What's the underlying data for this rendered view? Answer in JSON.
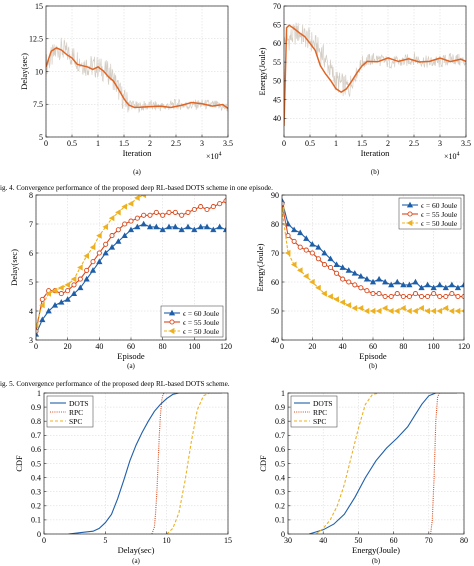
{
  "captions": {
    "fig4": "ig. 4.   Convergence performance of the proposed deep RL-based DOTS scheme in one episode.",
    "fig5": "ig. 5.   Convergence performance of the proposed deep RL-based DOTS scheme."
  },
  "chart_data": [
    {
      "type": "line",
      "panel": "(a)",
      "xlabel": "Iteration",
      "ylabel": "Delay(sec)",
      "x_multiplier": "×10^4",
      "xlim": [
        0,
        3.5
      ],
      "ylim": [
        5,
        15
      ],
      "xticks": [
        0,
        0.5,
        1,
        1.5,
        2,
        2.5,
        3,
        3.5
      ],
      "xtick_labels": [
        "0",
        "0.5",
        "1",
        "1.5",
        "2",
        "2.5",
        "3",
        "3.5"
      ],
      "yticks": [
        5,
        7.5,
        10,
        12.5,
        15
      ],
      "ytick_labels": [
        "5",
        "7.5",
        "10",
        "12.5",
        "15"
      ],
      "grid": true,
      "series": [
        {
          "role": "raw",
          "color": "#d4cdc4",
          "x": [
            0,
            0.25,
            0.5,
            0.75,
            1.0,
            1.25,
            1.5,
            1.75,
            2.0,
            2.25,
            2.5,
            2.75,
            3.0,
            3.25,
            3.5
          ],
          "values": [
            10.5,
            11.8,
            11.2,
            10.5,
            10.3,
            9.8,
            7.8,
            7.3,
            7.4,
            7.3,
            7.5,
            7.4,
            7.5,
            7.4,
            7.2
          ]
        },
        {
          "role": "average",
          "color": "#e06524",
          "x": [
            0,
            0.05,
            0.1,
            0.2,
            0.3,
            0.4,
            0.5,
            0.6,
            0.7,
            0.8,
            0.9,
            1.0,
            1.1,
            1.2,
            1.3,
            1.4,
            1.5,
            1.55,
            1.6,
            1.7,
            1.8,
            2.0,
            2.2,
            2.4,
            2.6,
            2.8,
            3.0,
            3.2,
            3.4,
            3.5
          ],
          "values": [
            10.4,
            11.0,
            11.5,
            11.8,
            11.6,
            11.3,
            11.0,
            10.6,
            10.4,
            10.3,
            10.2,
            10.3,
            10.1,
            9.6,
            9.2,
            8.6,
            7.9,
            7.6,
            7.4,
            7.2,
            7.3,
            7.3,
            7.4,
            7.3,
            7.4,
            7.6,
            7.5,
            7.4,
            7.5,
            7.2
          ]
        }
      ]
    },
    {
      "type": "line",
      "panel": "(b)",
      "xlabel": "Iteration",
      "ylabel": "Energy(Joule)",
      "x_multiplier": "×10^4",
      "xlim": [
        0,
        3.5
      ],
      "ylim": [
        35,
        70
      ],
      "xticks": [
        0,
        0.5,
        1,
        1.5,
        2,
        2.5,
        3,
        3.5
      ],
      "xtick_labels": [
        "0",
        "0.5",
        "1",
        "1.5",
        "2",
        "2.5",
        "3",
        "3.5"
      ],
      "yticks": [
        40,
        45,
        50,
        55,
        60,
        65,
        70
      ],
      "ytick_labels": [
        "40",
        "45",
        "50",
        "55",
        "60",
        "65",
        "70"
      ],
      "grid": true,
      "series": [
        {
          "role": "raw",
          "color": "#d4cdc4",
          "x": [
            0,
            0.25,
            0.5,
            0.75,
            1.0,
            1.25,
            1.5,
            1.75,
            2.0,
            2.25,
            2.5,
            2.75,
            3.0,
            3.25,
            3.5
          ],
          "values": [
            60,
            63,
            61,
            57,
            50,
            48,
            55,
            56,
            55,
            55,
            56,
            55,
            55,
            56,
            55
          ]
        },
        {
          "role": "average",
          "color": "#e06524",
          "x": [
            0,
            0.05,
            0.1,
            0.2,
            0.3,
            0.4,
            0.5,
            0.6,
            0.7,
            0.8,
            0.9,
            1.0,
            1.1,
            1.2,
            1.3,
            1.4,
            1.5,
            1.6,
            1.8,
            2.0,
            2.2,
            2.4,
            2.6,
            2.8,
            3.0,
            3.2,
            3.4,
            3.5
          ],
          "values": [
            38,
            64,
            65,
            64,
            63,
            62,
            60,
            58,
            54,
            52,
            50,
            48,
            47,
            48,
            50,
            52,
            54,
            55,
            55,
            56,
            55,
            56,
            55,
            55,
            56,
            55,
            56,
            55
          ]
        }
      ]
    },
    {
      "type": "line",
      "panel": "(a)",
      "xlabel": "Episode",
      "ylabel": "Delay(sec)",
      "xlim": [
        0,
        120
      ],
      "ylim": [
        3,
        8
      ],
      "xticks": [
        0,
        20,
        40,
        60,
        80,
        100,
        120
      ],
      "xtick_labels": [
        "0",
        "20",
        "40",
        "60",
        "80",
        "100",
        "120"
      ],
      "yticks": [
        3,
        4,
        5,
        6,
        7,
        8
      ],
      "ytick_labels": [
        "3",
        "4",
        "5",
        "6",
        "7",
        "8"
      ],
      "grid": true,
      "legend_position": "bottom-right",
      "x": [
        0,
        4,
        8,
        12,
        16,
        20,
        24,
        28,
        32,
        36,
        40,
        44,
        48,
        52,
        56,
        60,
        64,
        68,
        72,
        76,
        80,
        84,
        88,
        92,
        96,
        100,
        104,
        108,
        112,
        116,
        120
      ],
      "series": [
        {
          "name": "ϵ = 60 Joule",
          "color": "#1f5fa8",
          "marker": "triangle",
          "values": [
            3.2,
            3.7,
            4.0,
            4.2,
            4.3,
            4.4,
            4.6,
            4.8,
            5.1,
            5.4,
            5.7,
            6.0,
            6.2,
            6.4,
            6.6,
            6.8,
            6.9,
            7.0,
            6.9,
            6.9,
            6.8,
            6.9,
            6.9,
            6.8,
            6.9,
            6.8,
            6.9,
            6.9,
            6.8,
            6.9,
            6.8
          ]
        },
        {
          "name": "ϵ = 55 Joule",
          "color": "#d9481b",
          "marker": "circle",
          "values": [
            3.3,
            4.4,
            4.7,
            4.7,
            4.6,
            4.7,
            4.9,
            5.1,
            5.4,
            5.7,
            6.0,
            6.3,
            6.6,
            6.8,
            7.0,
            7.1,
            7.2,
            7.3,
            7.3,
            7.4,
            7.3,
            7.4,
            7.4,
            7.3,
            7.4,
            7.5,
            7.6,
            7.5,
            7.6,
            7.7,
            7.8
          ]
        },
        {
          "name": "ϵ = 50 Joule",
          "color": "#edb120",
          "marker": "triangle-left",
          "values": [
            3.5,
            4.2,
            4.6,
            4.7,
            4.8,
            4.9,
            5.1,
            5.5,
            5.9,
            6.2,
            6.6,
            6.9,
            7.2,
            7.4,
            7.6,
            7.7,
            7.9,
            8.0,
            8.1,
            8.2,
            8.2,
            8.3,
            8.3,
            8.2,
            8.3,
            8.3,
            8.4,
            8.3,
            8.3,
            8.4,
            8.4
          ]
        }
      ]
    },
    {
      "type": "line",
      "panel": "(b)",
      "xlabel": "Episode",
      "ylabel": "Energy(Joule)",
      "xlim": [
        0,
        120
      ],
      "ylim": [
        40,
        90
      ],
      "xticks": [
        0,
        20,
        40,
        60,
        80,
        100,
        120
      ],
      "xtick_labels": [
        "0",
        "20",
        "40",
        "60",
        "80",
        "100",
        "120"
      ],
      "yticks": [
        40,
        50,
        60,
        70,
        80,
        90
      ],
      "ytick_labels": [
        "40",
        "50",
        "60",
        "70",
        "80",
        "90"
      ],
      "grid": true,
      "legend_position": "top-right",
      "x": [
        0,
        4,
        8,
        12,
        16,
        20,
        24,
        28,
        32,
        36,
        40,
        44,
        48,
        52,
        56,
        60,
        64,
        68,
        72,
        76,
        80,
        84,
        88,
        92,
        96,
        100,
        104,
        108,
        112,
        116,
        120
      ],
      "series": [
        {
          "name": "ϵ = 60 Joule",
          "color": "#1f5fa8",
          "marker": "triangle",
          "values": [
            88,
            80,
            78,
            77,
            75,
            73,
            72,
            70,
            68,
            66,
            65,
            64,
            63,
            62,
            61,
            60,
            61,
            60,
            59,
            60,
            59,
            59,
            60,
            58,
            59,
            58,
            59,
            58,
            59,
            58,
            59
          ]
        },
        {
          "name": "ϵ = 55 Joule",
          "color": "#d9481b",
          "marker": "circle",
          "values": [
            87,
            76,
            74,
            72,
            71,
            70,
            68,
            66,
            65,
            63,
            61,
            60,
            59,
            58,
            57,
            56,
            56,
            55,
            55,
            56,
            55,
            55,
            56,
            55,
            55,
            56,
            55,
            55,
            56,
            55,
            55
          ]
        },
        {
          "name": "ϵ = 50 Joule",
          "color": "#edb120",
          "marker": "triangle-left",
          "values": [
            85,
            70,
            66,
            64,
            62,
            60,
            58,
            56,
            55,
            54,
            53,
            52,
            51,
            51,
            50,
            50,
            50,
            51,
            50,
            50,
            51,
            50,
            50,
            51,
            50,
            50,
            50,
            51,
            50,
            50,
            50
          ]
        }
      ]
    },
    {
      "type": "line",
      "panel": "(a)",
      "xlabel": "Delay(sec)",
      "ylabel": "CDF",
      "xlim": [
        0,
        15
      ],
      "ylim": [
        0,
        1
      ],
      "xticks": [
        0,
        5,
        10,
        15
      ],
      "xtick_labels": [
        "0",
        "5",
        "10",
        "15"
      ],
      "yticks": [
        0,
        0.1,
        0.2,
        0.3,
        0.4,
        0.5,
        0.6,
        0.7,
        0.8,
        0.9,
        1
      ],
      "ytick_labels": [
        "0",
        "0.1",
        "0.2",
        "0.3",
        "0.4",
        "0.5",
        "0.6",
        "0.7",
        "0.8",
        "0.9",
        "1"
      ],
      "grid": true,
      "legend_position": "top-left",
      "series": [
        {
          "name": "DOTS",
          "color": "#1f5fa8",
          "style": "solid",
          "x": [
            2,
            3,
            4,
            4.5,
            5,
            5.5,
            6,
            6.5,
            7,
            7.5,
            8,
            8.5,
            9,
            9.5,
            10,
            10.5,
            11,
            12,
            14.5
          ],
          "values": [
            0,
            0.01,
            0.02,
            0.04,
            0.08,
            0.14,
            0.25,
            0.38,
            0.52,
            0.63,
            0.72,
            0.8,
            0.87,
            0.92,
            0.96,
            0.99,
            1.0,
            1.0,
            1.0
          ]
        },
        {
          "name": "RPC",
          "color": "#d9481b",
          "style": "dotted",
          "x": [
            8.8,
            9.0,
            9.1,
            9.2,
            9.3,
            9.4,
            9.5,
            9.6,
            9.7,
            9.8
          ],
          "values": [
            0,
            0.05,
            0.15,
            0.3,
            0.5,
            0.7,
            0.85,
            0.95,
            0.99,
            1.0
          ]
        },
        {
          "name": "SPC",
          "color": "#edb120",
          "style": "dashed",
          "x": [
            10,
            10.5,
            11,
            11.5,
            12,
            12.5,
            13,
            13.5
          ],
          "values": [
            0,
            0.04,
            0.15,
            0.38,
            0.65,
            0.88,
            0.98,
            1.0
          ]
        }
      ]
    },
    {
      "type": "line",
      "panel": "(b)",
      "xlabel": "Energy(Joule)",
      "ylabel": "CDF",
      "xlim": [
        30,
        80
      ],
      "ylim": [
        0,
        1
      ],
      "xticks": [
        30,
        40,
        50,
        60,
        70,
        80
      ],
      "xtick_labels": [
        "30",
        "40",
        "50",
        "60",
        "70",
        "80"
      ],
      "yticks": [
        0,
        0.1,
        0.2,
        0.3,
        0.4,
        0.5,
        0.6,
        0.7,
        0.8,
        0.9,
        1
      ],
      "ytick_labels": [
        "0",
        "0.1",
        "0.2",
        "0.3",
        "0.4",
        "0.5",
        "0.6",
        "0.7",
        "0.8",
        "0.9",
        "1"
      ],
      "grid": true,
      "legend_position": "top-left",
      "series": [
        {
          "name": "DOTS",
          "color": "#1f5fa8",
          "style": "solid",
          "x": [
            36,
            40,
            43,
            46,
            49,
            52,
            55,
            58,
            61,
            64,
            66,
            68,
            70,
            72,
            74,
            78
          ],
          "values": [
            0,
            0.03,
            0.07,
            0.14,
            0.26,
            0.4,
            0.52,
            0.61,
            0.68,
            0.76,
            0.84,
            0.92,
            0.98,
            1.0,
            1.0,
            1.0
          ]
        },
        {
          "name": "RPC",
          "color": "#d9481b",
          "style": "dotted",
          "x": [
            70.5,
            71,
            71.5,
            72,
            72.5,
            73
          ],
          "values": [
            0,
            0.1,
            0.4,
            0.8,
            0.97,
            1.0
          ]
        },
        {
          "name": "SPC",
          "color": "#edb120",
          "style": "dashed",
          "x": [
            38,
            40,
            42,
            44,
            46,
            48,
            50,
            52,
            54,
            56
          ],
          "values": [
            0,
            0.04,
            0.1,
            0.2,
            0.35,
            0.55,
            0.75,
            0.92,
            0.99,
            1.0
          ]
        }
      ]
    }
  ]
}
